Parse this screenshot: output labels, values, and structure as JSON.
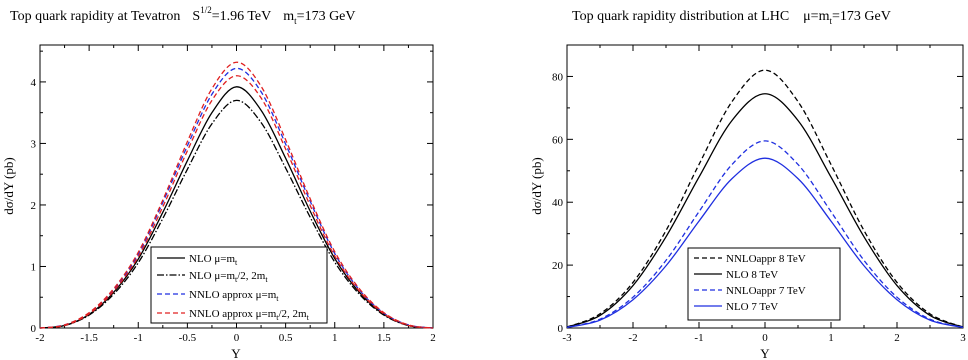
{
  "chart_data": [
    {
      "type": "line",
      "title": "Top quark rapidity at Tevatron",
      "title_energy": "S^{1/2}=1.96 TeV",
      "title_mass": "m_t=173 GeV",
      "xlabel": "Y",
      "ylabel": "dσ/dY (pb)",
      "xlim": [
        -2,
        2
      ],
      "ylim": [
        0,
        4.6
      ],
      "xticks": [
        -2,
        -1.5,
        -1,
        -0.5,
        0,
        0.5,
        1,
        1.5,
        2
      ],
      "xticklabels": [
        "-2",
        "-1.5",
        "-1",
        "-0.5",
        "0",
        "0.5",
        "1",
        "1.5",
        "2"
      ],
      "yticks": [
        0,
        1,
        2,
        3,
        4
      ],
      "yticklabels": [
        "0",
        "1",
        "2",
        "3",
        "4"
      ],
      "legend_position": "lower-center",
      "series": [
        {
          "name": "NLO μ=m_t",
          "color": "#000000",
          "dash": "solid",
          "x": [
            -2,
            -1.75,
            -1.5,
            -1.25,
            -1,
            -0.75,
            -0.5,
            -0.25,
            0,
            0.25,
            0.5,
            0.75,
            1,
            1.25,
            1.5,
            1.75,
            2
          ],
          "y": [
            0.0,
            0.04,
            0.22,
            0.58,
            1.12,
            1.88,
            2.72,
            3.5,
            3.92,
            3.54,
            2.76,
            1.9,
            1.13,
            0.58,
            0.22,
            0.04,
            0.0
          ]
        },
        {
          "name": "NLO μ=m_t/2, 2m_t",
          "color": "#000000",
          "dash": "dashdot",
          "x": [
            -2,
            -1.75,
            -1.5,
            -1.25,
            -1,
            -0.75,
            -0.5,
            -0.25,
            0,
            0.25,
            0.5,
            0.75,
            1,
            1.25,
            1.5,
            1.75,
            2
          ],
          "y": [
            0.0,
            0.04,
            0.21,
            0.55,
            1.06,
            1.78,
            2.58,
            3.32,
            3.7,
            3.34,
            2.6,
            1.8,
            1.07,
            0.55,
            0.21,
            0.04,
            0.0
          ]
        },
        {
          "name": "NNLO approx μ=m_t",
          "color": "#1f2fe0",
          "dash": "dashed",
          "x": [
            -2,
            -1.75,
            -1.5,
            -1.25,
            -1,
            -0.75,
            -0.5,
            -0.25,
            0,
            0.25,
            0.5,
            0.75,
            1,
            1.25,
            1.5,
            1.75,
            2
          ],
          "y": [
            0.0,
            0.05,
            0.24,
            0.62,
            1.2,
            2.04,
            2.96,
            3.8,
            4.22,
            3.84,
            2.99,
            2.06,
            1.21,
            0.62,
            0.24,
            0.05,
            0.0
          ]
        },
        {
          "name": "NNLO approx μ=m_t/2, 2m_t",
          "color": "#e02020",
          "dash": "dashed",
          "x": [
            -2,
            -1.75,
            -1.5,
            -1.25,
            -1,
            -0.75,
            -0.5,
            -0.25,
            0,
            0.25,
            0.5,
            0.75,
            1,
            1.25,
            1.5,
            1.75,
            2
          ],
          "y": [
            0.0,
            0.05,
            0.25,
            0.64,
            1.23,
            2.08,
            3.03,
            3.89,
            4.32,
            3.93,
            3.06,
            2.1,
            1.24,
            0.64,
            0.25,
            0.05,
            0.0
          ]
        },
        {
          "name": "",
          "color": "#e02020",
          "dash": "dashed",
          "x": [
            -2,
            -1.75,
            -1.5,
            -1.25,
            -1,
            -0.75,
            -0.5,
            -0.25,
            0,
            0.25,
            0.5,
            0.75,
            1,
            1.25,
            1.5,
            1.75,
            2
          ],
          "y": [
            0.0,
            0.04,
            0.23,
            0.6,
            1.16,
            1.97,
            2.88,
            3.7,
            4.1,
            3.74,
            2.91,
            1.99,
            1.17,
            0.6,
            0.23,
            0.04,
            0.0
          ]
        }
      ]
    },
    {
      "type": "line",
      "title": "Top quark rapidity distribution at LHC",
      "title_mass": "μ=m_t=173 GeV",
      "xlabel": "Y",
      "ylabel": "dσ/dY (pb)",
      "xlim": [
        -3,
        3
      ],
      "ylim": [
        0,
        90
      ],
      "xticks": [
        -3,
        -2,
        -1,
        0,
        1,
        2,
        3
      ],
      "xticklabels": [
        "-3",
        "-2",
        "-1",
        "0",
        "1",
        "2",
        "3"
      ],
      "yticks": [
        0,
        20,
        40,
        60,
        80
      ],
      "yticklabels": [
        "0",
        "20",
        "40",
        "60",
        "80"
      ],
      "legend_position": "lower-center",
      "series": [
        {
          "name": "NNLOappr 8 TeV",
          "color": "#000000",
          "dash": "dashed",
          "x": [
            -3,
            -2.5,
            -2,
            -1.5,
            -1,
            -0.5,
            0,
            0.5,
            1,
            1.5,
            2,
            2.5,
            3
          ],
          "y": [
            0.3,
            4.5,
            14.5,
            31,
            52,
            72,
            82,
            72,
            52,
            31,
            14.5,
            4.5,
            0.3
          ]
        },
        {
          "name": "NLO 8 TeV",
          "color": "#000000",
          "dash": "solid",
          "x": [
            -3,
            -2.5,
            -2,
            -1.5,
            -1,
            -0.5,
            0,
            0.5,
            1,
            1.5,
            2,
            2.5,
            3
          ],
          "y": [
            0.3,
            4,
            13.5,
            29,
            48,
            66,
            74.5,
            66,
            48,
            29,
            13.5,
            4,
            0.3
          ]
        },
        {
          "name": "NNLOappr 7 TeV",
          "color": "#1f2fe0",
          "dash": "dashed",
          "x": [
            -3,
            -2.5,
            -2,
            -1.5,
            -1,
            -0.5,
            0,
            0.5,
            1,
            1.5,
            2,
            2.5,
            3
          ],
          "y": [
            0.2,
            2.8,
            9.8,
            21.5,
            37,
            52,
            59.5,
            52,
            37,
            21.5,
            9.8,
            2.8,
            0.2
          ]
        },
        {
          "name": "NLO 7 TeV",
          "color": "#1f2fe0",
          "dash": "solid",
          "x": [
            -3,
            -2.5,
            -2,
            -1.5,
            -1,
            -0.5,
            0,
            0.5,
            1,
            1.5,
            2,
            2.5,
            3
          ],
          "y": [
            0.2,
            2.5,
            9,
            19.8,
            34,
            47.5,
            54,
            47.5,
            34,
            19.8,
            9,
            2.5,
            0.2
          ]
        }
      ]
    }
  ]
}
